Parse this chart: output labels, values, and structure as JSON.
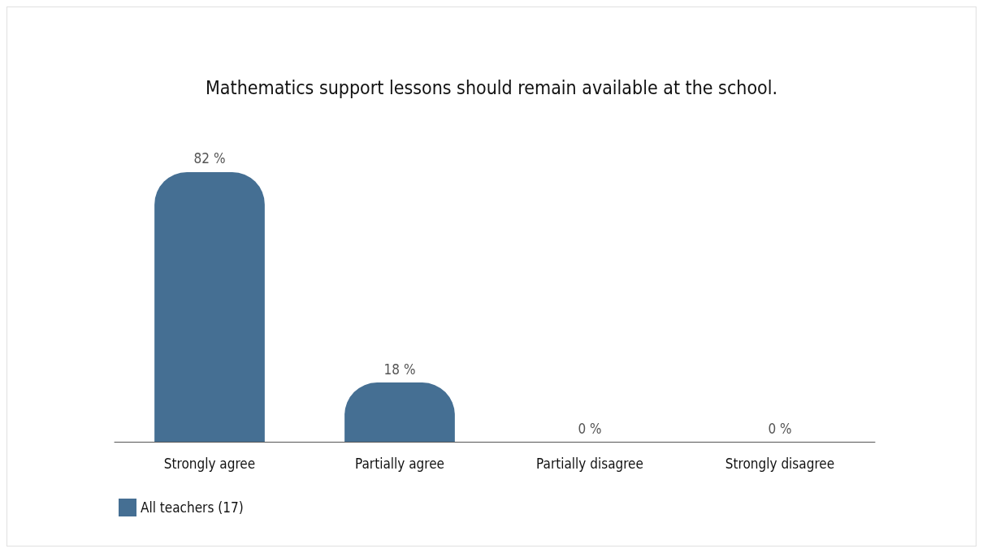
{
  "chart_data": {
    "type": "bar",
    "title": "Mathematics support lessons should remain available at the school.",
    "categories": [
      "Strongly agree",
      "Partially agree",
      "Partially disagree",
      "Strongly disagree"
    ],
    "series": [
      {
        "name": "All teachers (17)",
        "color": "#456f93",
        "values": [
          82,
          18,
          0,
          0
        ],
        "value_labels": [
          "82 %",
          "18 %",
          "0 %",
          "0 %"
        ]
      }
    ],
    "legend": "bottom left",
    "grid": false
  }
}
